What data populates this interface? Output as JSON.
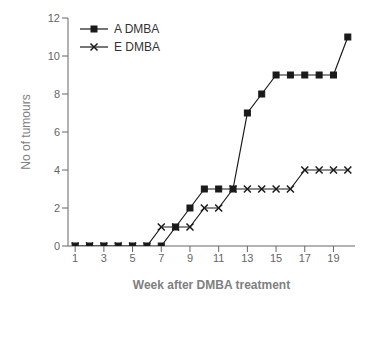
{
  "chart_data": {
    "type": "line",
    "xlabel": "Week after DMBA treatment",
    "ylabel": "No of tumours",
    "x": [
      1,
      2,
      3,
      4,
      5,
      6,
      7,
      8,
      9,
      10,
      11,
      12,
      13,
      14,
      15,
      16,
      17,
      18,
      19,
      20
    ],
    "series": [
      {
        "name": "A DMBA",
        "color": "#1a1a1a",
        "marker": "square",
        "values": [
          0,
          0,
          0,
          0,
          0,
          0,
          0,
          1,
          2,
          3,
          3,
          3,
          7,
          8,
          9,
          9,
          9,
          9,
          9,
          11
        ]
      },
      {
        "name": "E DMBA",
        "color": "#1a1a1a",
        "marker": "x",
        "values": [
          0,
          0,
          0,
          0,
          0,
          0,
          1,
          1,
          1,
          2,
          2,
          3,
          3,
          3,
          3,
          3,
          4,
          4,
          4,
          4
        ]
      }
    ],
    "xlim": [
      0.5,
      20.5
    ],
    "ylim": [
      0,
      12
    ],
    "xticks": [
      1,
      3,
      5,
      7,
      9,
      11,
      13,
      15,
      17,
      19
    ],
    "yticks": [
      0,
      2,
      4,
      6,
      8,
      10,
      12
    ],
    "grid": false,
    "legend": "upper left"
  }
}
